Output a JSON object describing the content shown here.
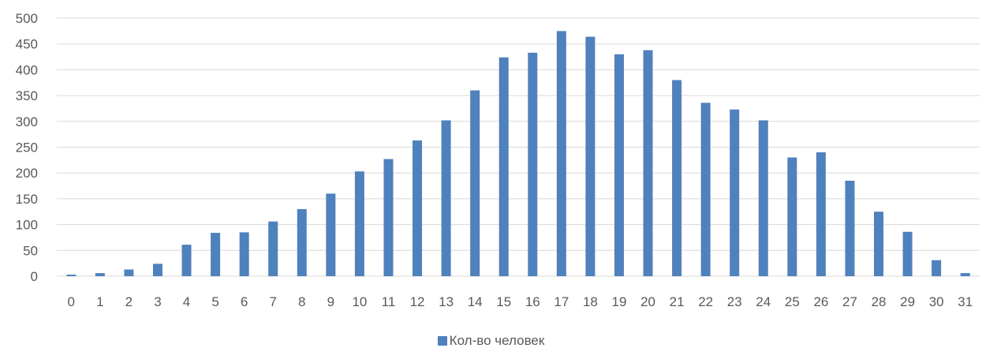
{
  "chart_data": {
    "type": "bar",
    "categories": [
      "0",
      "1",
      "2",
      "3",
      "4",
      "5",
      "6",
      "7",
      "8",
      "9",
      "10",
      "11",
      "12",
      "13",
      "14",
      "15",
      "16",
      "17",
      "18",
      "19",
      "20",
      "21",
      "22",
      "23",
      "24",
      "25",
      "26",
      "27",
      "28",
      "29",
      "30",
      "31"
    ],
    "series": [
      {
        "name": "Кол-во человек",
        "color": "#4F81BD",
        "values": [
          3,
          6,
          13,
          24,
          61,
          84,
          85,
          106,
          130,
          160,
          203,
          227,
          263,
          302,
          360,
          424,
          433,
          475,
          464,
          430,
          438,
          380,
          336,
          323,
          302,
          230,
          240,
          185,
          125,
          86,
          31,
          6
        ]
      }
    ],
    "yticks": [
      "0",
      "50",
      "100",
      "150",
      "200",
      "250",
      "300",
      "350",
      "400",
      "450",
      "500"
    ],
    "ylim": [
      0,
      500
    ],
    "grid": true,
    "legend_position": "bottom",
    "title": "",
    "xlabel": "",
    "ylabel": "",
    "gridline_color": "#D9D9D9"
  }
}
